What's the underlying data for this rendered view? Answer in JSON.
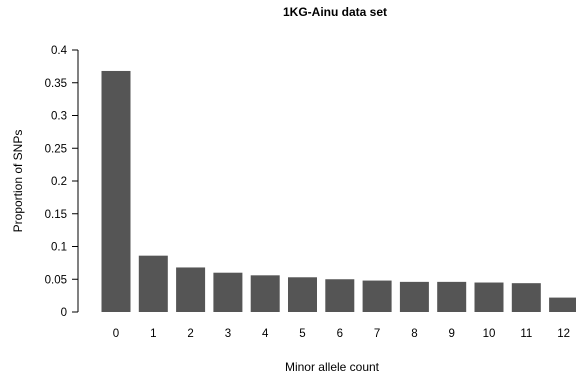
{
  "chart_data": {
    "type": "bar",
    "title": "1KG-Ainu data set",
    "xlabel": "Minor allele count",
    "ylabel": "Proportion of SNPs",
    "categories": [
      "0",
      "1",
      "2",
      "3",
      "4",
      "5",
      "6",
      "7",
      "8",
      "9",
      "10",
      "11",
      "12"
    ],
    "values": [
      0.368,
      0.086,
      0.068,
      0.06,
      0.056,
      0.053,
      0.05,
      0.048,
      0.046,
      0.046,
      0.045,
      0.044,
      0.022
    ],
    "ylim": [
      0,
      0.4
    ],
    "yticks": [
      "0",
      "0.05",
      "0.1",
      "0.15",
      "0.2",
      "0.25",
      "0.3",
      "0.35",
      "0.4"
    ],
    "bar_color": "#555555",
    "grid": false
  }
}
